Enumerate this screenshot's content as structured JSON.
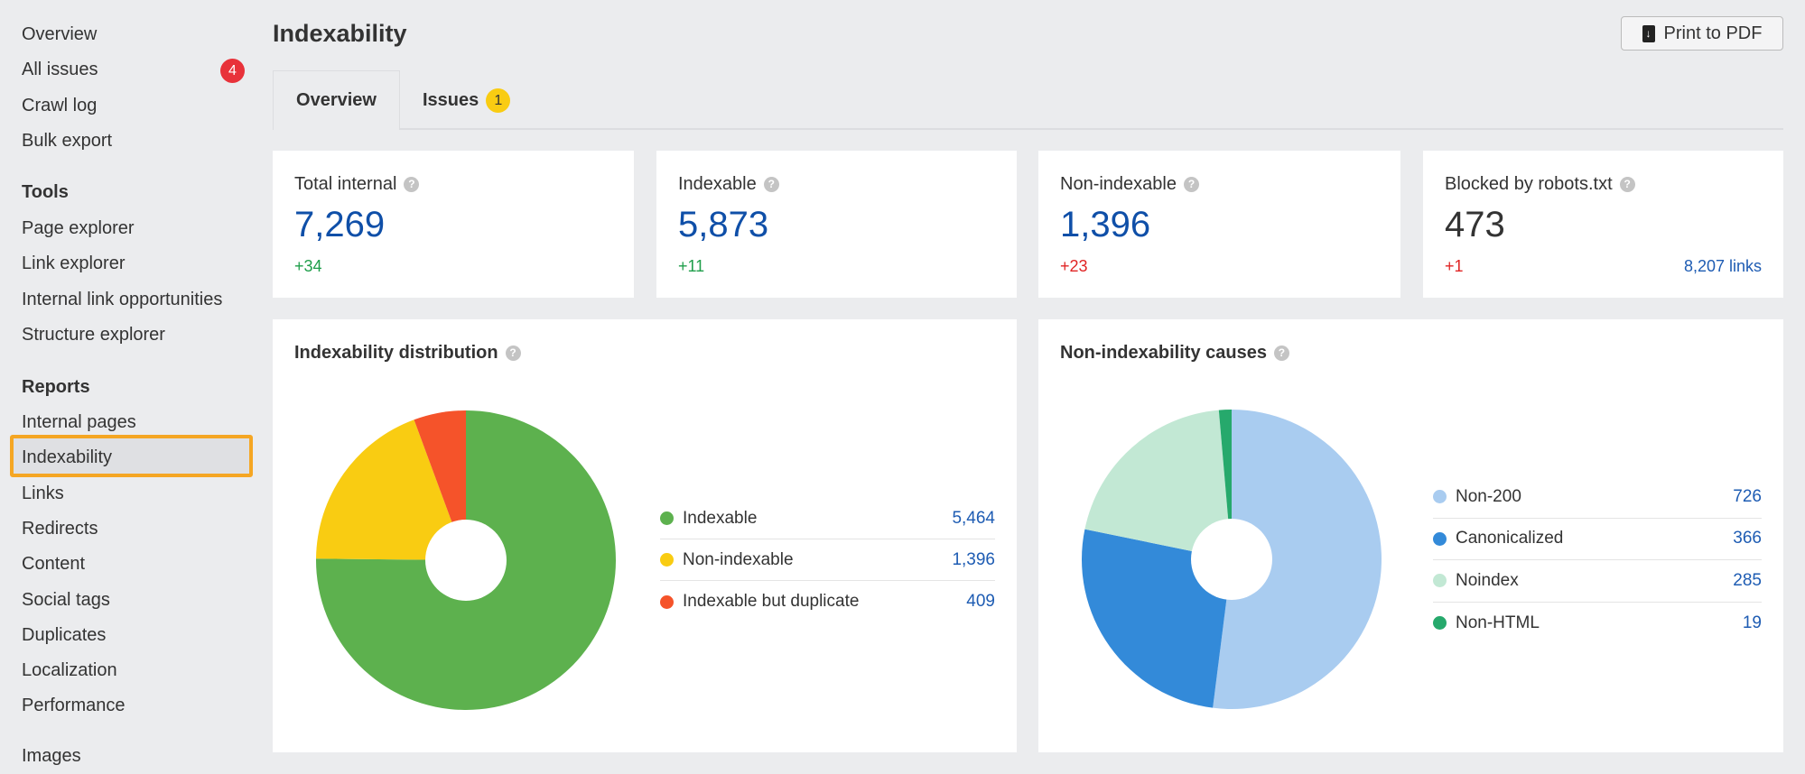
{
  "sidebar": {
    "items": [
      "Overview",
      "All issues",
      "Crawl log",
      "Bulk export"
    ],
    "all_issues_badge": "4",
    "tools_heading": "Tools",
    "tools": [
      "Page explorer",
      "Link explorer",
      "Internal link opportunities",
      "Structure explorer"
    ],
    "reports_heading": "Reports",
    "reports": [
      "Internal pages",
      "Indexability",
      "Links",
      "Redirects",
      "Content",
      "Social tags",
      "Duplicates",
      "Localization",
      "Performance"
    ],
    "extra": [
      "Images"
    ],
    "active": "Indexability"
  },
  "header": {
    "title": "Indexability",
    "print_label": "Print to PDF"
  },
  "tabs": [
    {
      "label": "Overview"
    },
    {
      "label": "Issues",
      "badge": "1"
    }
  ],
  "cards": [
    {
      "label": "Total internal",
      "value": "7,269",
      "delta": "+34",
      "delta_color": "#1e9e4a"
    },
    {
      "label": "Indexable",
      "value": "5,873",
      "delta": "+11",
      "delta_color": "#1e9e4a"
    },
    {
      "label": "Non-indexable",
      "value": "1,396",
      "delta": "+23",
      "delta_color": "#e02424"
    },
    {
      "label": "Blocked by robots.txt",
      "value": "473",
      "delta": "+1",
      "delta_color": "#e02424",
      "links": "8,207 links"
    }
  ],
  "chart_data": [
    {
      "type": "pie",
      "title": "Indexability distribution",
      "donut": true,
      "slices": [
        {
          "name": "Indexable",
          "value": 5464,
          "label": "5,464",
          "color": "#5db14e"
        },
        {
          "name": "Non-indexable",
          "value": 1396,
          "label": "1,396",
          "color": "#f9cc12"
        },
        {
          "name": "Indexable but duplicate",
          "value": 409,
          "label": "409",
          "color": "#f5532a"
        }
      ]
    },
    {
      "type": "pie",
      "title": "Non-indexability causes",
      "donut": true,
      "slices": [
        {
          "name": "Non-200",
          "value": 726,
          "label": "726",
          "color": "#a9ccf0"
        },
        {
          "name": "Canonicalized",
          "value": 366,
          "label": "366",
          "color": "#338ad9"
        },
        {
          "name": "Noindex",
          "value": 285,
          "label": "285",
          "color": "#c2e8d4"
        },
        {
          "name": "Non-HTML",
          "value": 19,
          "label": "19",
          "color": "#26a96c"
        }
      ]
    }
  ]
}
